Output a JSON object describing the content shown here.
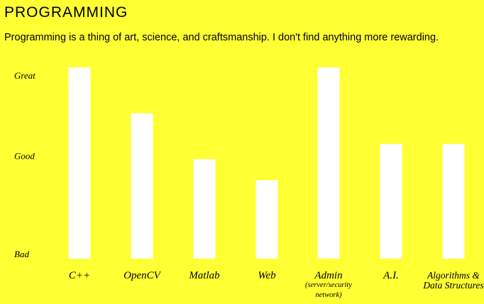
{
  "header": {
    "title": "PROGRAMMING",
    "subtitle": "Programming is a thing of art, science, and craftsmanship.  I don't find anything more rewarding."
  },
  "chart_data": {
    "type": "bar",
    "categories": [
      [
        "C++"
      ],
      [
        "OpenCV"
      ],
      [
        "Matlab"
      ],
      [
        "Web"
      ],
      [
        "Admin",
        "(server/security",
        "network)"
      ],
      [
        "A.I."
      ],
      [
        "Algorithms &",
        "Data Structures"
      ]
    ],
    "values": [
      10,
      7.6,
      5.2,
      4.1,
      10,
      6,
      6
    ],
    "ylim": [
      0,
      10
    ],
    "yticks": [
      {
        "value": 0,
        "label": "Bad"
      },
      {
        "value": 5.8,
        "label": "Good"
      },
      {
        "value": 10,
        "label": "Great"
      }
    ],
    "grid": false,
    "legend": "none",
    "colors": {
      "background": "#ffff33",
      "bar": "#ffffff",
      "text": "#000000"
    }
  }
}
